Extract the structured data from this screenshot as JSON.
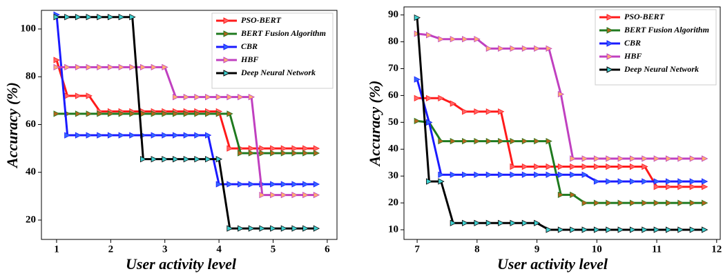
{
  "chart_data": [
    {
      "type": "line",
      "x_label": "User activity level",
      "y_label": "Accuracy (%)",
      "x": [
        1.0,
        1.2,
        1.4,
        1.6,
        1.8,
        2.0,
        2.2,
        2.4,
        2.6,
        2.8,
        3.0,
        3.2,
        3.4,
        3.6,
        3.8,
        4.0,
        4.2,
        4.4,
        4.6,
        4.8,
        5.0,
        5.2,
        5.4,
        5.6,
        5.8
      ],
      "xlim": [
        0.72,
        6.18
      ],
      "xticks": [
        1,
        2,
        3,
        4,
        5,
        6
      ],
      "ylim": [
        11.9,
        107.8
      ],
      "yticks": [
        20,
        40,
        60,
        80,
        100
      ],
      "legend": "upper right",
      "series": [
        {
          "name": "PSO-BERT",
          "color": "#ff1a1a",
          "marker_color": "#ff6666",
          "values": [
            87,
            72,
            72,
            72,
            65.5,
            65.5,
            65.5,
            65.5,
            65.5,
            65.5,
            65.5,
            65.5,
            65.5,
            65.5,
            65.5,
            65.5,
            50,
            50,
            50,
            50,
            50,
            50,
            50,
            50,
            50
          ]
        },
        {
          "name": "BERT Fusion Algorithm",
          "color": "#1f7a1f",
          "marker_color": "#b5651d",
          "values": [
            64.5,
            64.5,
            64.5,
            64.5,
            64.5,
            64.5,
            64.5,
            64.5,
            64.5,
            64.5,
            64.5,
            64.5,
            64.5,
            64.5,
            64.5,
            64.5,
            64.5,
            48,
            48,
            48,
            48,
            48,
            48,
            48,
            48
          ]
        },
        {
          "name": "CBR",
          "color": "#1a1aff",
          "marker_color": "#3366ff",
          "values": [
            106,
            55.5,
            55.5,
            55.5,
            55.5,
            55.5,
            55.5,
            55.5,
            55.5,
            55.5,
            55.5,
            55.5,
            55.5,
            55.5,
            55.5,
            35,
            35,
            35,
            35,
            35,
            35,
            35,
            35,
            35,
            35
          ]
        },
        {
          "name": "HBF",
          "color": "#c040c0",
          "marker_color": "#ffb070",
          "values": [
            84,
            84,
            84,
            84,
            84,
            84,
            84,
            84,
            84,
            84,
            84,
            71.5,
            71.5,
            71.5,
            71.5,
            71.5,
            71.5,
            71.5,
            71.5,
            30.5,
            30.5,
            30.5,
            30.5,
            30.5,
            30.5
          ]
        },
        {
          "name": "Deep Neural Network",
          "color": "#000000",
          "marker_color": "#40d0d0",
          "values": [
            105,
            105,
            105,
            105,
            105,
            105,
            105,
            105,
            45.5,
            45.5,
            45.5,
            45.5,
            45.5,
            45.5,
            45.5,
            45.5,
            16.5,
            16.5,
            16.5,
            16.5,
            16.5,
            16.5,
            16.5,
            16.5,
            16.5
          ]
        }
      ]
    },
    {
      "type": "line",
      "x_label": "User activity level",
      "y_label": "Accuracy (%)",
      "x": [
        7.0,
        7.2,
        7.4,
        7.6,
        7.8,
        8.0,
        8.2,
        8.4,
        8.6,
        8.8,
        9.0,
        9.2,
        9.4,
        9.6,
        9.8,
        10.0,
        10.2,
        10.4,
        10.6,
        10.8,
        11.0,
        11.2,
        11.4,
        11.6,
        11.8
      ],
      "xlim": [
        6.78,
        12.06
      ],
      "xticks": [
        7,
        8,
        9,
        10,
        11,
        12
      ],
      "ylim": [
        6.4,
        93
      ],
      "yticks": [
        10,
        20,
        30,
        40,
        50,
        60,
        70,
        80,
        90
      ],
      "legend": "upper right",
      "series": [
        {
          "name": "PSO-BERT",
          "color": "#ff1a1a",
          "marker_color": "#ff6666",
          "values": [
            59,
            59,
            59,
            57,
            54,
            54,
            54,
            54,
            33.5,
            33.5,
            33.5,
            33.5,
            33.5,
            33.5,
            33.5,
            33.5,
            33.5,
            33.5,
            33.5,
            33.5,
            26,
            26,
            26,
            26,
            26
          ]
        },
        {
          "name": "BERT Fusion Algorithm",
          "color": "#1f7a1f",
          "marker_color": "#b5651d",
          "values": [
            50.5,
            50,
            43,
            43,
            43,
            43,
            43,
            43,
            43,
            43,
            43,
            43,
            23,
            23,
            20,
            20,
            20,
            20,
            20,
            20,
            20,
            20,
            20,
            20,
            20
          ]
        },
        {
          "name": "CBR",
          "color": "#1a1aff",
          "marker_color": "#3366ff",
          "values": [
            66,
            50,
            30.5,
            30.5,
            30.5,
            30.5,
            30.5,
            30.5,
            30.5,
            30.5,
            30.5,
            30.5,
            30.5,
            30.5,
            30.5,
            28,
            28,
            28,
            28,
            28,
            28,
            28,
            28,
            28,
            28
          ]
        },
        {
          "name": "HBF",
          "color": "#c040c0",
          "marker_color": "#ffb070",
          "values": [
            83,
            82.5,
            81,
            81,
            81,
            81,
            77.5,
            77.5,
            77.5,
            77.5,
            77.5,
            77.5,
            60.5,
            36.5,
            36.5,
            36.5,
            36.5,
            36.5,
            36.5,
            36.5,
            36.5,
            36.5,
            36.5,
            36.5,
            36.5
          ]
        },
        {
          "name": "Deep Neural Network",
          "color": "#000000",
          "marker_color": "#40d0d0",
          "values": [
            89,
            28,
            28,
            12.5,
            12.5,
            12.5,
            12.5,
            12.5,
            12.5,
            12.5,
            12.5,
            10,
            10,
            10,
            10,
            10,
            10,
            10,
            10,
            10,
            10,
            10,
            10,
            10,
            10
          ]
        }
      ]
    }
  ]
}
